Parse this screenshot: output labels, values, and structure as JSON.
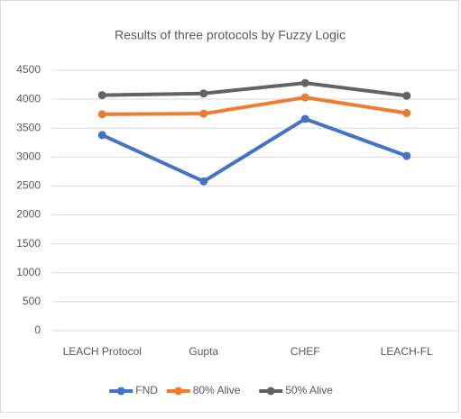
{
  "chart_data": {
    "type": "line",
    "title": "Results of three protocols by Fuzzy Logic",
    "categories": [
      "LEACH Protocol",
      "Gupta",
      "CHEF",
      "LEACH-FL"
    ],
    "series": [
      {
        "name": "FND",
        "color": "#4472c4",
        "values": [
          3380,
          2580,
          3660,
          3020
        ]
      },
      {
        "name": "80% Alive",
        "color": "#ed7d31",
        "values": [
          3740,
          3750,
          4030,
          3760
        ]
      },
      {
        "name": "50% Alive",
        "color": "#636363",
        "values": [
          4070,
          4100,
          4280,
          4060
        ]
      }
    ],
    "ylim": [
      0,
      4500
    ],
    "yticks": [
      0,
      500,
      1000,
      1500,
      2000,
      2500,
      3000,
      3500,
      4000,
      4500
    ],
    "grid": true,
    "legend": "bottom"
  }
}
